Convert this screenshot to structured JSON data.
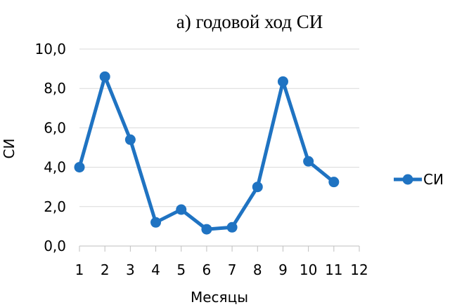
{
  "chart_data": {
    "type": "line",
    "title": "а) годовой ход СИ",
    "xlabel": "Месяцы",
    "ylabel": "СИ",
    "x_ticks": [
      "1",
      "2",
      "3",
      "4",
      "5",
      "6",
      "7",
      "8",
      "9",
      "10",
      "11",
      "12"
    ],
    "y_ticks": [
      "0,0",
      "2,0",
      "4,0",
      "6,0",
      "8,0",
      "10,0"
    ],
    "xlim": [
      1,
      12
    ],
    "ylim": [
      0,
      10
    ],
    "grid": "horizontal",
    "legend_position": "right",
    "series": [
      {
        "name": "СИ",
        "color": "#1f73c2",
        "x": [
          1,
          2,
          3,
          4,
          5,
          6,
          7,
          8,
          9,
          10,
          11
        ],
        "y": [
          4.0,
          8.6,
          5.4,
          1.2,
          1.85,
          0.85,
          0.95,
          3.0,
          8.35,
          4.3,
          3.25
        ]
      }
    ]
  }
}
